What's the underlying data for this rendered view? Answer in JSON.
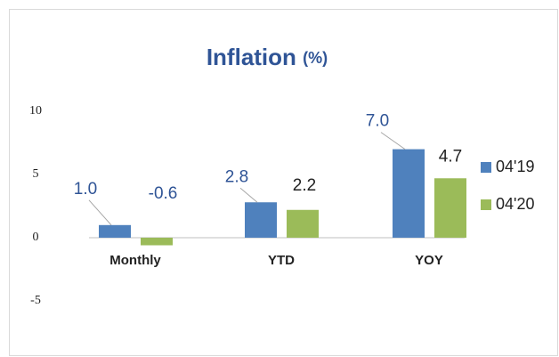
{
  "chart_data": {
    "type": "bar",
    "title": "Inflation",
    "title_unit": "(%)",
    "categories": [
      "Monthly",
      "YTD",
      "YOY"
    ],
    "series": [
      {
        "name": "04'19",
        "color": "#4f81bd",
        "values": [
          1.0,
          2.8,
          7.0
        ],
        "value_labels": [
          "1.0",
          "2.8",
          "7.0"
        ]
      },
      {
        "name": "04'20",
        "color": "#9bbb59",
        "values": [
          -0.6,
          2.2,
          4.7
        ],
        "value_labels": [
          "-0.6",
          "2.2",
          "4.7"
        ]
      }
    ],
    "ylim": [
      -5,
      10
    ],
    "yticks": [
      -5,
      0,
      5,
      10
    ],
    "grid": false,
    "legend": "right"
  }
}
